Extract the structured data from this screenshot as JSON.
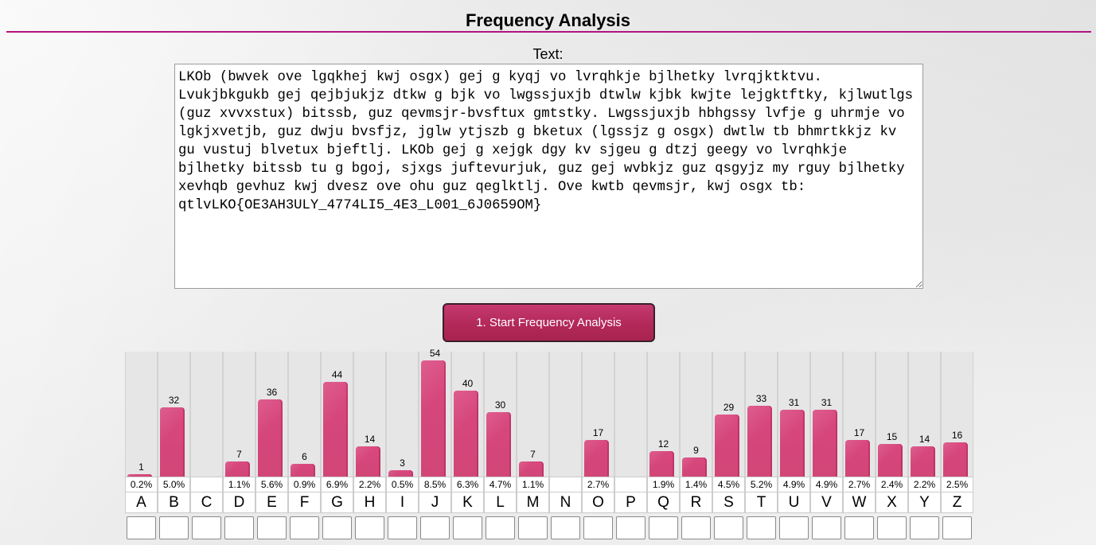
{
  "page": {
    "title": "Frequency Analysis",
    "text_label": "Text:",
    "ciphertext": "LKOb (bwvek ove lgqkhej kwj osgx) gej g kyqj vo lvrqhkje bjlhetky lvrqjktktvu. Lvukjbkgukb gej qejbjukjz dtkw g bjk vo lwgssjuxjb dtwlw kjbk kwjte lejgktftky, kjlwutlgs (guz xvvxstux) bitssb, guz qevmsjr-bvsftux gmtstky. Lwgssjuxjb hbhgssy lvfje g uhrmje vo lgkjxvetjb, guz dwju bvsfjz, jglw ytjszb g bketux (lgssjz g osgx) dwtlw tb bhmrtkkjz kv gu vustuj blvetux bjeftlj. LKOb gej g xejgk dgy kv sjgeu g dtzj geegy vo lvrqhkje bjlhetky bitssb tu g bgoj, sjxgs juftevurjuk, guz gej wvbkjz guz qsgyjz my rguy bjlhetky xevhqb gevhuz kwj dvesz ove ohu guz qeglktlj. Ove kwtb qevmsjr, kwj osgx tb: qtlvLKO{OE3AH3ULY_4774LI5_4E3_L001_6J0659OM}",
    "start_button": "1. Start Frequency Analysis"
  },
  "chart_data": {
    "type": "bar",
    "categories": [
      "A",
      "B",
      "C",
      "D",
      "E",
      "F",
      "G",
      "H",
      "I",
      "J",
      "K",
      "L",
      "M",
      "N",
      "O",
      "P",
      "Q",
      "R",
      "S",
      "T",
      "U",
      "V",
      "W",
      "X",
      "Y",
      "Z"
    ],
    "values": [
      1,
      32,
      0,
      7,
      36,
      6,
      44,
      14,
      3,
      54,
      40,
      30,
      7,
      0,
      17,
      0,
      12,
      9,
      29,
      33,
      31,
      31,
      17,
      15,
      14,
      16
    ],
    "count_labels": [
      "1",
      "32",
      "",
      "7",
      "36",
      "6",
      "44",
      "14",
      "3",
      "54",
      "40",
      "30",
      "7",
      "",
      "17",
      "",
      "12",
      "9",
      "29",
      "33",
      "31",
      "31",
      "17",
      "15",
      "14",
      "16"
    ],
    "percent_labels": [
      "0.2%",
      "5.0%",
      "",
      "1.1%",
      "5.6%",
      "0.9%",
      "6.9%",
      "2.2%",
      "0.5%",
      "8.5%",
      "6.3%",
      "4.7%",
      "1.1%",
      "",
      "2.7%",
      "",
      "1.9%",
      "1.4%",
      "4.5%",
      "5.2%",
      "4.9%",
      "4.9%",
      "2.7%",
      "2.4%",
      "2.2%",
      "2.5%"
    ],
    "ylim": [
      0,
      54
    ],
    "bar_color": "#d14677",
    "mapping_inputs": [
      "",
      "",
      "",
      "",
      "",
      "",
      "",
      "",
      "",
      "",
      "",
      "",
      "",
      "",
      "",
      "",
      "",
      "",
      "",
      "",
      "",
      "",
      "",
      "",
      "",
      ""
    ]
  }
}
